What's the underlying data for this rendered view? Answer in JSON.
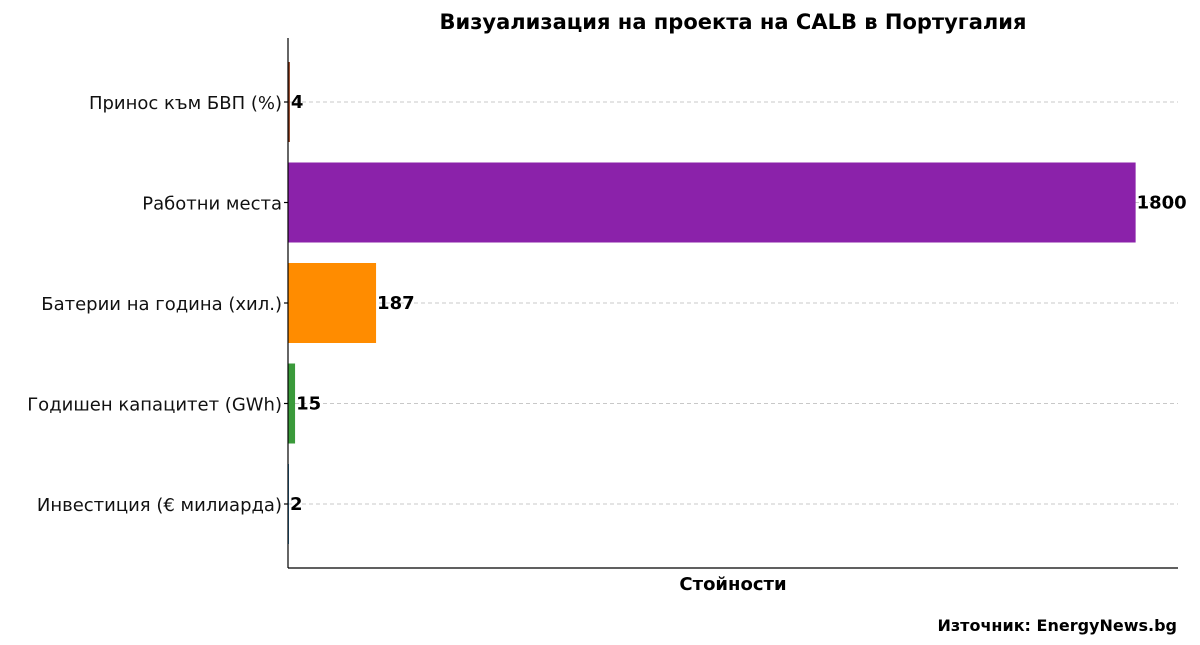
{
  "chart_data": {
    "type": "bar",
    "orientation": "horizontal",
    "title": "Визуализация на проекта на CALB в Португалия",
    "xlabel": "Стойности",
    "ylabel": "",
    "categories": [
      "Инвестиция (€ милиарда)",
      "Годишен капацитет (GWh)",
      "Батерии на година (хил.)",
      "Работни места",
      "Принос към БВП (%)"
    ],
    "values": [
      2,
      15,
      187,
      1800,
      4
    ],
    "colors": [
      "#1f77b4",
      "#3a9a3a",
      "#ff8c00",
      "#8b22aa",
      "#8b3a1a"
    ],
    "xlim": [
      0,
      1890
    ],
    "grid": true,
    "source": "Източник: EnergyNews.bg"
  }
}
